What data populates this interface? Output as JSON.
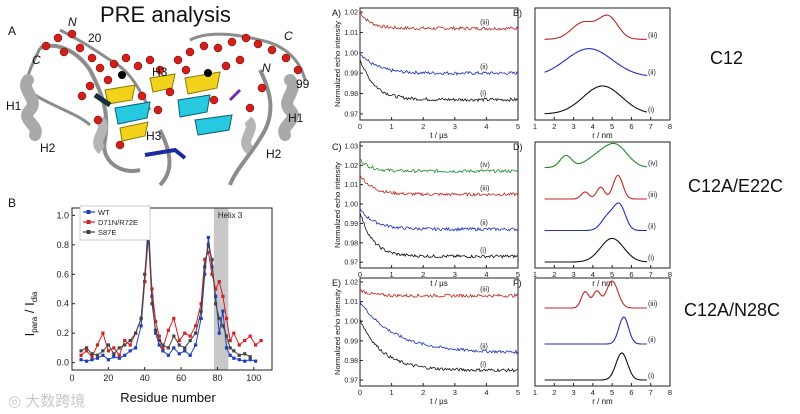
{
  "structure": {
    "title": "PRE analysis",
    "panel_label": "A",
    "labels": {
      "n_left": "N",
      "c_left": "C",
      "num_20": "20",
      "c_right": "C",
      "n_right": "N",
      "num_99": "99",
      "h1_left": "H1",
      "h2_left": "H2",
      "h3_left": "H3",
      "h3_mid": "H3",
      "h3_right": "H3",
      "h1_right": "H1",
      "h2_right": "H2"
    }
  },
  "pre_chart": {
    "panel_label": "B",
    "xlabel": "Residue number",
    "ylabel_main": "I",
    "ylabel_sub1": "para",
    "ylabel_mid": " / I",
    "ylabel_sub2": "dia",
    "helix_label": "Helix 3",
    "x_ticks": [
      "0",
      "20",
      "40",
      "60",
      "80",
      "100"
    ],
    "y_ticks": [
      "0.0",
      "0.2",
      "0.4",
      "0.6",
      "0.8",
      "1.0"
    ],
    "legend": [
      "WT",
      "D71N/R72E",
      "S87E"
    ]
  },
  "chart_data": {
    "type": "line",
    "xlabel": "Residue number",
    "ylabel": "Ipara / Idia",
    "xlim": [
      0,
      110
    ],
    "ylim": [
      -0.05,
      1.05
    ],
    "helix_region": [
      78,
      86
    ],
    "series": [
      {
        "name": "WT",
        "color": "#1f3fbf",
        "x": [
          5,
          8,
          11,
          14,
          17,
          20,
          23,
          26,
          29,
          32,
          35,
          38,
          40,
          42,
          44,
          46,
          48,
          50,
          53,
          56,
          59,
          62,
          65,
          68,
          71,
          73,
          75,
          77,
          79,
          81,
          83,
          85,
          87,
          89,
          92,
          95,
          98,
          101
        ],
        "y": [
          0.02,
          0.01,
          0.02,
          0.03,
          0.05,
          0.02,
          0.04,
          0.03,
          0.05,
          0.08,
          0.1,
          0.25,
          0.55,
          0.98,
          0.45,
          0.2,
          0.12,
          0.08,
          0.05,
          0.1,
          0.06,
          0.08,
          0.05,
          0.12,
          0.3,
          0.6,
          0.85,
          0.65,
          0.45,
          0.2,
          0.35,
          0.1,
          0.05,
          0.03,
          0.02,
          0.01,
          0.02,
          0.01
        ]
      },
      {
        "name": "D71N/R72E",
        "color": "#d62020",
        "x": [
          5,
          8,
          11,
          14,
          17,
          20,
          23,
          26,
          29,
          32,
          35,
          38,
          40,
          42,
          44,
          46,
          48,
          50,
          53,
          56,
          59,
          62,
          65,
          68,
          71,
          73,
          75,
          77,
          79,
          81,
          83,
          85,
          87,
          89,
          92,
          95,
          98,
          101,
          104
        ],
        "y": [
          0.05,
          0.08,
          0.04,
          0.12,
          0.2,
          0.08,
          0.1,
          0.05,
          0.15,
          0.12,
          0.2,
          0.3,
          0.55,
          0.85,
          0.5,
          0.28,
          0.18,
          0.1,
          0.22,
          0.3,
          0.15,
          0.2,
          0.18,
          0.25,
          0.4,
          0.7,
          0.75,
          0.6,
          0.5,
          0.55,
          0.45,
          0.3,
          0.15,
          0.2,
          0.12,
          0.15,
          0.18,
          0.12,
          0.15
        ]
      },
      {
        "name": "S87E",
        "color": "#444444",
        "x": [
          5,
          8,
          11,
          14,
          17,
          20,
          23,
          26,
          29,
          32,
          35,
          38,
          40,
          42,
          44,
          46,
          48,
          50,
          53,
          56,
          59,
          62,
          65,
          68,
          71,
          73,
          75,
          77,
          79,
          81,
          83,
          85,
          87,
          89,
          92,
          95,
          98
        ],
        "y": [
          0.08,
          0.1,
          0.06,
          0.05,
          0.08,
          0.12,
          0.06,
          0.1,
          0.12,
          0.15,
          0.2,
          0.3,
          0.6,
          0.88,
          0.4,
          0.22,
          0.15,
          0.12,
          0.1,
          0.18,
          0.12,
          0.1,
          0.15,
          0.2,
          0.35,
          0.65,
          0.8,
          0.7,
          0.4,
          0.3,
          0.25,
          0.18,
          0.1,
          0.08,
          0.05,
          0.06,
          0.04
        ]
      }
    ]
  },
  "deer": {
    "panels": [
      {
        "label": "A)",
        "fit_label": "B)",
        "name": "C12",
        "y_ticks": [
          "0.97",
          "0.98",
          "0.99",
          "1.00",
          "1.01",
          "1.02"
        ],
        "traces": [
          "(iii)",
          "(ii)",
          "(i)"
        ]
      },
      {
        "label": "C)",
        "fit_label": "D)",
        "name": "C12A/E22C",
        "y_ticks": [
          "0.97",
          "0.98",
          "0.99",
          "1.00",
          "1.01",
          "1.02",
          "1.03"
        ],
        "traces": [
          "(iv)",
          "(iii)",
          "(ii)",
          "(i)"
        ]
      },
      {
        "label": "E)",
        "fit_label": "F)",
        "name": "C12A/N28C",
        "y_ticks": [
          "0.97",
          "0.98",
          "0.99",
          "1.00",
          "1.01",
          "1.02"
        ],
        "traces": [
          "(iii)",
          "(ii)",
          "(i)"
        ]
      }
    ],
    "t_label": "t / µs",
    "r_label": "r / nm",
    "y_label": "Normalized echo intensity",
    "t_ticks": [
      "0",
      "1",
      "2",
      "3",
      "4",
      "5"
    ],
    "r_ticks": [
      "1",
      "2",
      "3",
      "4",
      "5",
      "6",
      "7",
      "8"
    ],
    "colors": {
      "black": "#111111",
      "blue": "#1c2fbf",
      "red": "#c0261e",
      "green": "#1f8a2a"
    }
  },
  "watermark": "大数跨境"
}
